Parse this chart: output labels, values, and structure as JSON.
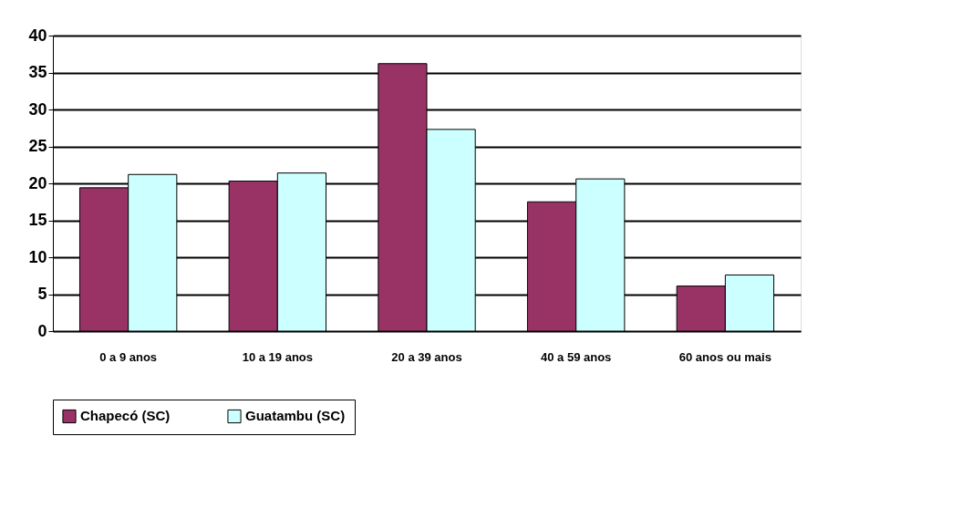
{
  "chart_data": {
    "type": "bar",
    "categories": [
      "0 a 9 anos",
      "10 a 19 anos",
      "20 a 39 anos",
      "40 a 59 anos",
      "60 anos ou mais"
    ],
    "series": [
      {
        "name": "Chapecó (SC)",
        "color": "#993366",
        "values": [
          19.4,
          20.3,
          36.2,
          17.5,
          6.1
        ]
      },
      {
        "name": "Guatambu (SC)",
        "color": "#ccffff",
        "values": [
          21.2,
          21.4,
          27.3,
          20.6,
          7.6
        ]
      }
    ],
    "ylim": [
      0,
      40
    ],
    "yticks": [
      0,
      5,
      10,
      15,
      20,
      25,
      30,
      35,
      40
    ],
    "grid": "y",
    "legend": "bottom"
  }
}
